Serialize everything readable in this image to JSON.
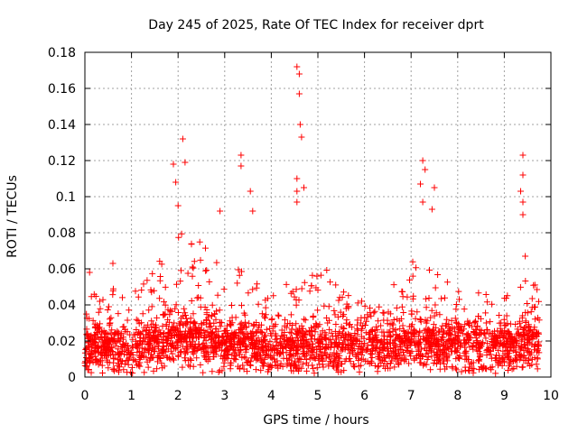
{
  "chart_data": {
    "type": "scatter",
    "title": "Day 245 of 2025, Rate Of TEC Index for receiver dprt",
    "xlabel": "GPS time / hours",
    "ylabel": "ROTI / TECUs",
    "xlim": [
      0,
      10
    ],
    "ylim": [
      0,
      0.18
    ],
    "xticks": [
      0,
      1,
      2,
      3,
      4,
      5,
      6,
      7,
      8,
      9,
      10
    ],
    "xtick_labels": [
      "0",
      "1",
      "2",
      "3",
      "4",
      "5",
      "6",
      "7",
      "8",
      "9",
      "10"
    ],
    "yticks": [
      0,
      0.02,
      0.04,
      0.06,
      0.08,
      0.1,
      0.12,
      0.14,
      0.16,
      0.18
    ],
    "ytick_labels": [
      "0",
      "0.02",
      "0.04",
      "0.06",
      "0.08",
      "0.1",
      "0.12",
      "0.14",
      "0.16",
      "0.18"
    ],
    "grid": true,
    "marker": "+",
    "color": "#ff0000",
    "data_extent_hours": [
      0,
      9.75
    ],
    "notable_points": [
      {
        "x": 0.1,
        "y": 0.058
      },
      {
        "x": 0.6,
        "y": 0.063
      },
      {
        "x": 1.9,
        "y": 0.118
      },
      {
        "x": 1.95,
        "y": 0.108
      },
      {
        "x": 2.1,
        "y": 0.132
      },
      {
        "x": 2.15,
        "y": 0.119
      },
      {
        "x": 2.0,
        "y": 0.095
      },
      {
        "x": 2.9,
        "y": 0.092
      },
      {
        "x": 3.35,
        "y": 0.123
      },
      {
        "x": 3.35,
        "y": 0.117
      },
      {
        "x": 3.55,
        "y": 0.103
      },
      {
        "x": 3.6,
        "y": 0.092
      },
      {
        "x": 4.55,
        "y": 0.172
      },
      {
        "x": 4.6,
        "y": 0.168
      },
      {
        "x": 4.6,
        "y": 0.157
      },
      {
        "x": 4.62,
        "y": 0.14
      },
      {
        "x": 4.65,
        "y": 0.133
      },
      {
        "x": 4.55,
        "y": 0.11
      },
      {
        "x": 4.55,
        "y": 0.103
      },
      {
        "x": 4.7,
        "y": 0.105
      },
      {
        "x": 4.55,
        "y": 0.097
      },
      {
        "x": 7.25,
        "y": 0.12
      },
      {
        "x": 7.3,
        "y": 0.115
      },
      {
        "x": 7.2,
        "y": 0.107
      },
      {
        "x": 7.25,
        "y": 0.097
      },
      {
        "x": 7.5,
        "y": 0.105
      },
      {
        "x": 7.45,
        "y": 0.093
      },
      {
        "x": 9.4,
        "y": 0.123
      },
      {
        "x": 9.4,
        "y": 0.112
      },
      {
        "x": 9.35,
        "y": 0.103
      },
      {
        "x": 9.4,
        "y": 0.097
      },
      {
        "x": 9.4,
        "y": 0.09
      },
      {
        "x": 9.45,
        "y": 0.067
      }
    ],
    "activity_profile": {
      "x": [
        0,
        0.5,
        1,
        1.5,
        2,
        2.5,
        3,
        3.5,
        4,
        4.5,
        5,
        5.5,
        6,
        6.5,
        7,
        7.5,
        8,
        8.5,
        9,
        9.5,
        9.75
      ],
      "upper_envelope": [
        0.045,
        0.05,
        0.045,
        0.065,
        0.085,
        0.075,
        0.07,
        0.065,
        0.045,
        0.055,
        0.065,
        0.05,
        0.045,
        0.05,
        0.065,
        0.06,
        0.05,
        0.05,
        0.045,
        0.055,
        0.05
      ],
      "median": [
        0.015,
        0.017,
        0.016,
        0.02,
        0.022,
        0.021,
        0.018,
        0.018,
        0.015,
        0.016,
        0.017,
        0.016,
        0.016,
        0.017,
        0.019,
        0.018,
        0.018,
        0.017,
        0.017,
        0.02,
        0.018
      ]
    }
  }
}
